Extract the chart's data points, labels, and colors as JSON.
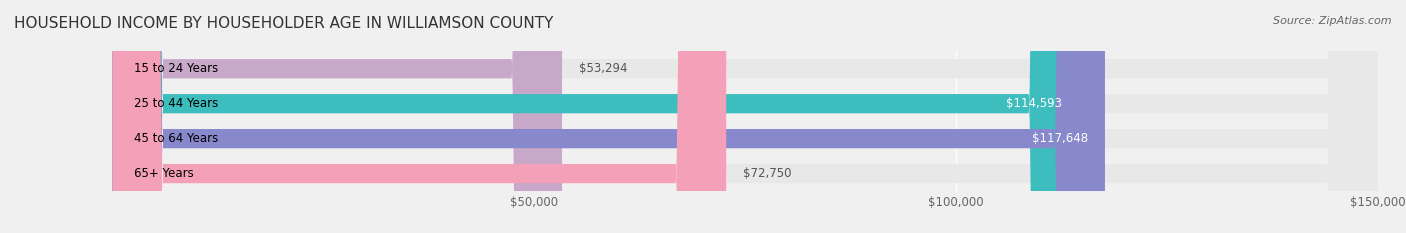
{
  "title": "HOUSEHOLD INCOME BY HOUSEHOLDER AGE IN WILLIAMSON COUNTY",
  "source": "Source: ZipAtlas.com",
  "categories": [
    "15 to 24 Years",
    "25 to 44 Years",
    "45 to 64 Years",
    "65+ Years"
  ],
  "values": [
    53294,
    114593,
    117648,
    72750
  ],
  "bar_colors": [
    "#c8a8c8",
    "#3dbdbd",
    "#8888cc",
    "#f4a0b8"
  ],
  "bg_color": "#f0f0f0",
  "bar_bg_color": "#e8e8e8",
  "xlim": [
    0,
    150000
  ],
  "xticks": [
    50000,
    100000,
    150000
  ],
  "xtick_labels": [
    "$50,000",
    "$100,000",
    "$150,000"
  ],
  "value_labels": [
    "$53,294",
    "$114,593",
    "$117,648",
    "$72,750"
  ],
  "title_fontsize": 11,
  "source_fontsize": 8,
  "label_fontsize": 8.5,
  "value_fontsize": 8.5
}
